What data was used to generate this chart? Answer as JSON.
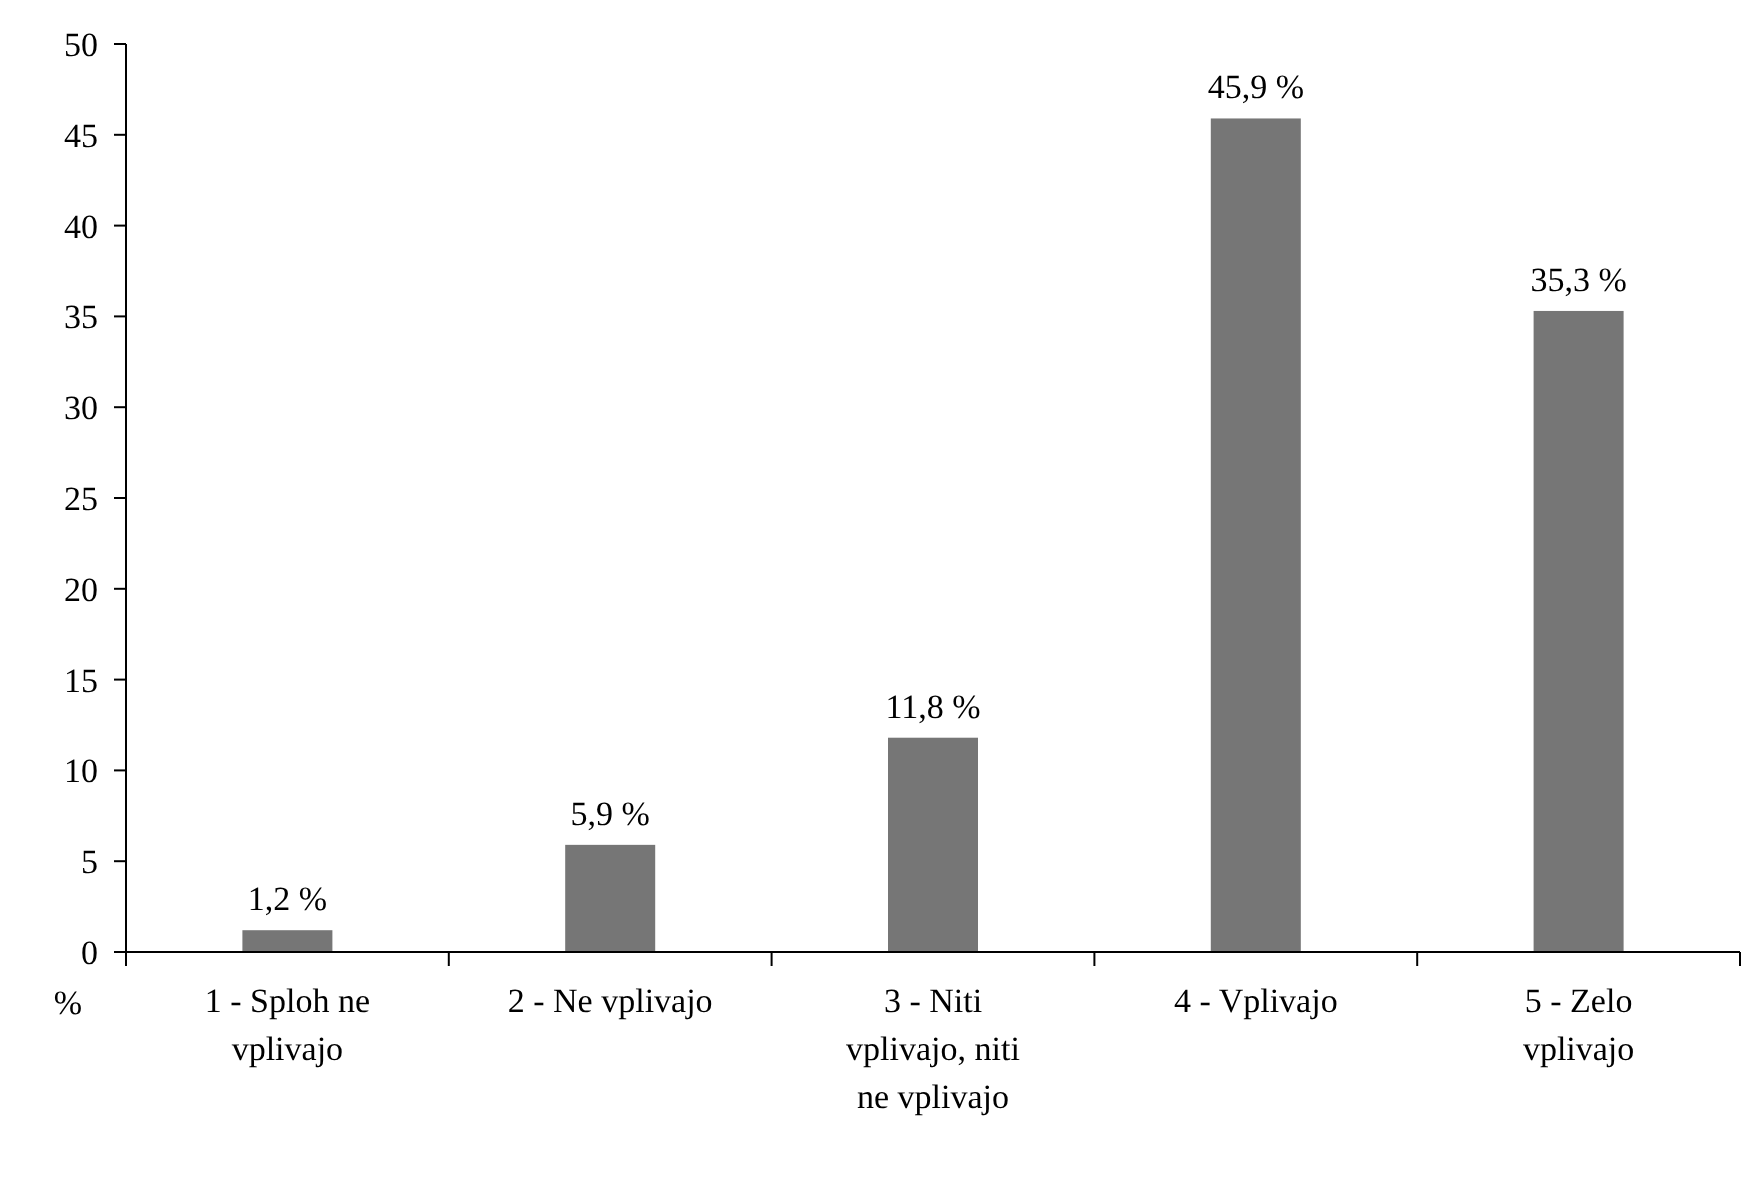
{
  "chart_data": {
    "type": "bar",
    "ylabel": "%",
    "categories": [
      "1 - Sploh ne vplivajo",
      "2 - Ne vplivajo",
      "3 - Niti vplivajo, niti ne vplivajo",
      "4 - Vplivajo",
      "5 - Zelo vplivajo"
    ],
    "values": [
      1.2,
      5.9,
      11.8,
      45.9,
      35.3
    ],
    "value_labels": [
      "1,2 %",
      "5,9 %",
      "11,8 %",
      "45,9 %",
      "35,3 %"
    ],
    "color": "#767676",
    "ylim": [
      0,
      50
    ],
    "yticks": [
      0,
      5,
      10,
      15,
      20,
      25,
      30,
      35,
      40,
      45,
      50
    ],
    "grid": false
  }
}
